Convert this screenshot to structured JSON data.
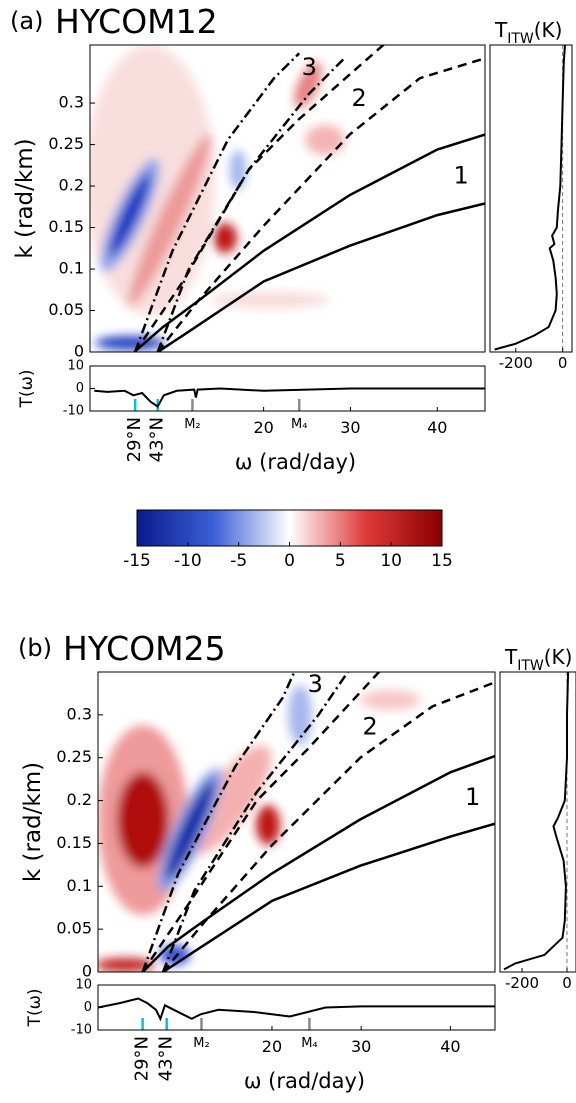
{
  "chart_data": [
    {
      "type": "dispersion",
      "panel_label": "(a)",
      "title": "HYCOM12",
      "ylabel": "k (rad/km)",
      "xlim": [
        0,
        45.5
      ],
      "ylim": [
        0,
        0.37
      ],
      "yticks": [
        0,
        0.05,
        0.1,
        0.15,
        0.2,
        0.25,
        0.3
      ],
      "modes": [
        {
          "label": "1",
          "style": "solid",
          "curves": [
            {
              "x": [
                5.1,
                8.4,
                12.4,
                20,
                29.9,
                40,
                45.5
              ],
              "values": [
                0,
                0.03,
                0.061,
                0.122,
                0.189,
                0.244,
                0.262
              ]
            },
            {
              "x": [
                7.8,
                11.3,
                20,
                29.9,
                40,
                45.5
              ],
              "values": [
                0,
                0.024,
                0.085,
                0.128,
                0.165,
                0.179
              ]
            }
          ]
        },
        {
          "label": "2",
          "style": "dashed",
          "curves": [
            {
              "x": [
                5.2,
                10.7,
                18.3,
                24,
                34
              ],
              "values": [
                0,
                0.085,
                0.22,
                0.28,
                0.372
              ]
            },
            {
              "x": [
                7.8,
                12.4,
                20,
                29.9,
                38,
                45.5
              ],
              "values": [
                0,
                0.061,
                0.152,
                0.262,
                0.33,
                0.354
              ]
            }
          ]
        },
        {
          "label": "3",
          "style": "dashdot",
          "curves": [
            {
              "x": [
                5.2,
                9.5,
                15.9,
                21.2,
                24.1
              ],
              "values": [
                0,
                0.122,
                0.256,
                0.33,
                0.36
              ]
            },
            {
              "x": [
                7.8,
                11.3,
                18.3,
                25.2,
                29.3
              ],
              "values": [
                0,
                0.098,
                0.22,
                0.311,
                0.354
              ]
            }
          ]
        }
      ]
    },
    {
      "type": "line",
      "ylabel": "T(ω)",
      "xlabel": "ω (rad/day)",
      "xlim": [
        0,
        45.5
      ],
      "ylim": [
        -10,
        10
      ],
      "xticks": [
        20,
        30,
        40
      ],
      "yticks": [
        -10,
        0,
        10
      ],
      "series": [
        {
          "color": "#000000",
          "x": [
            0.5,
            2,
            4,
            5,
            6,
            7,
            7.8,
            8.5,
            10,
            12,
            12.2,
            12.4,
            15,
            20,
            25,
            30,
            45.5
          ],
          "values": [
            -1,
            -1.5,
            -1,
            -3,
            -2,
            -6,
            -8,
            -3,
            -1,
            -0.5,
            -4,
            -0.5,
            0,
            -1,
            -0.5,
            0,
            0
          ]
        }
      ],
      "markers": [
        {
          "x": 5.2,
          "label": "29°N",
          "color": "#00c4d4"
        },
        {
          "x": 7.8,
          "label": "43°N",
          "color": "#00c4d4"
        },
        {
          "x": 11.8,
          "label": "M₂",
          "color": "#8a8a8a"
        },
        {
          "x": 24.1,
          "label": "M₄",
          "color": "#8a8a8a"
        }
      ]
    },
    {
      "type": "profile",
      "title": "T",
      "title_sub": "ITW",
      "title_unit": "(K)",
      "xlim": [
        -310,
        40
      ],
      "ylim": [
        0,
        0.37
      ],
      "xticks": [
        -200,
        0
      ],
      "zero_line": true,
      "series": [
        {
          "color": "#000000",
          "x": [
            -290,
            -200,
            -120,
            -60,
            -30,
            -25,
            -30,
            -40,
            -55,
            -35,
            -45,
            -25,
            -20,
            -10,
            -5,
            0,
            5,
            10
          ],
          "values": [
            0.003,
            0.01,
            0.02,
            0.03,
            0.05,
            0.07,
            0.09,
            0.11,
            0.125,
            0.13,
            0.14,
            0.15,
            0.17,
            0.2,
            0.25,
            0.3,
            0.35,
            0.37
          ]
        }
      ]
    },
    {
      "type": "colorbar",
      "lim": [
        -15,
        15
      ],
      "ticks": [
        -15,
        -10,
        -5,
        0,
        5,
        10,
        15
      ],
      "colors": [
        "#0a1a8c",
        "#3a5fd6",
        "#ffffff",
        "#e03a3a",
        "#8b0000"
      ]
    },
    {
      "type": "dispersion",
      "panel_label": "(b)",
      "title": "HYCOM25",
      "ylabel": "k (rad/km)",
      "xlim": [
        0.5,
        45
      ],
      "ylim": [
        0,
        0.35
      ],
      "yticks": [
        0,
        0.05,
        0.1,
        0.15,
        0.2,
        0.25,
        0.3
      ],
      "modes": [
        {
          "label": "1",
          "style": "solid",
          "curves": [
            {
              "x": [
                5.5,
                8.4,
                12.4,
                20,
                29.9,
                40,
                45
              ],
              "values": [
                0,
                0.03,
                0.06,
                0.115,
                0.178,
                0.233,
                0.252
              ]
            },
            {
              "x": [
                7.8,
                11.3,
                20,
                29.9,
                40,
                45
              ],
              "values": [
                0,
                0.024,
                0.083,
                0.124,
                0.158,
                0.173
              ]
            }
          ]
        },
        {
          "label": "2",
          "style": "dashed",
          "curves": [
            {
              "x": [
                5.5,
                10.7,
                18.3,
                24,
                32
              ],
              "values": [
                0,
                0.08,
                0.2,
                0.26,
                0.35
              ]
            },
            {
              "x": [
                7.8,
                12.4,
                20,
                29.9,
                38,
                45
              ],
              "values": [
                0,
                0.058,
                0.148,
                0.25,
                0.31,
                0.338
              ]
            }
          ]
        },
        {
          "label": "3",
          "style": "dashdot",
          "curves": [
            {
              "x": [
                5.5,
                9.5,
                15.9,
                21.2,
                22.5
              ],
              "values": [
                0,
                0.115,
                0.24,
                0.32,
                0.35
              ]
            },
            {
              "x": [
                7.8,
                11.3,
                18.3,
                25.2,
                28.5
              ],
              "values": [
                0,
                0.095,
                0.21,
                0.3,
                0.35
              ]
            }
          ]
        }
      ]
    },
    {
      "type": "line",
      "ylabel": "T(ω)",
      "xlabel": "ω (rad/day)",
      "xlim": [
        0.5,
        45
      ],
      "ylim": [
        -10,
        10
      ],
      "xticks": [
        20,
        30,
        40
      ],
      "yticks": [
        -10,
        0,
        10
      ],
      "series": [
        {
          "color": "#000000",
          "x": [
            0.5,
            3,
            5,
            6,
            7,
            7.5,
            8,
            9,
            10,
            11,
            12,
            14,
            18,
            20,
            22,
            24,
            26,
            30,
            45
          ],
          "values": [
            0,
            2,
            4,
            2,
            -1,
            -5,
            1,
            -1,
            -3,
            -5,
            -3,
            -1,
            -2,
            -3,
            -4,
            -2,
            0,
            0.5,
            0.5
          ]
        }
      ],
      "markers": [
        {
          "x": 5.5,
          "label": "29°N",
          "color": "#00c4d4"
        },
        {
          "x": 8.2,
          "label": "43°N",
          "color": "#00c4d4"
        },
        {
          "x": 12.1,
          "label": "M₂",
          "color": "#8a8a8a"
        },
        {
          "x": 24.2,
          "label": "M₄",
          "color": "#8a8a8a"
        }
      ]
    },
    {
      "type": "profile",
      "title": "T",
      "title_sub": "ITW",
      "title_unit": "(K)",
      "xlim": [
        -298,
        40
      ],
      "ylim": [
        0,
        0.35
      ],
      "xticks": [
        -200,
        0
      ],
      "zero_line": true,
      "series": [
        {
          "color": "#000000",
          "x": [
            -280,
            -230,
            -100,
            -20,
            -10,
            -5,
            -15,
            -50,
            -60,
            -40,
            -10,
            0,
            0,
            5
          ],
          "values": [
            0.003,
            0.01,
            0.02,
            0.04,
            0.06,
            0.1,
            0.13,
            0.16,
            0.17,
            0.18,
            0.2,
            0.25,
            0.3,
            0.35
          ]
        }
      ]
    }
  ]
}
